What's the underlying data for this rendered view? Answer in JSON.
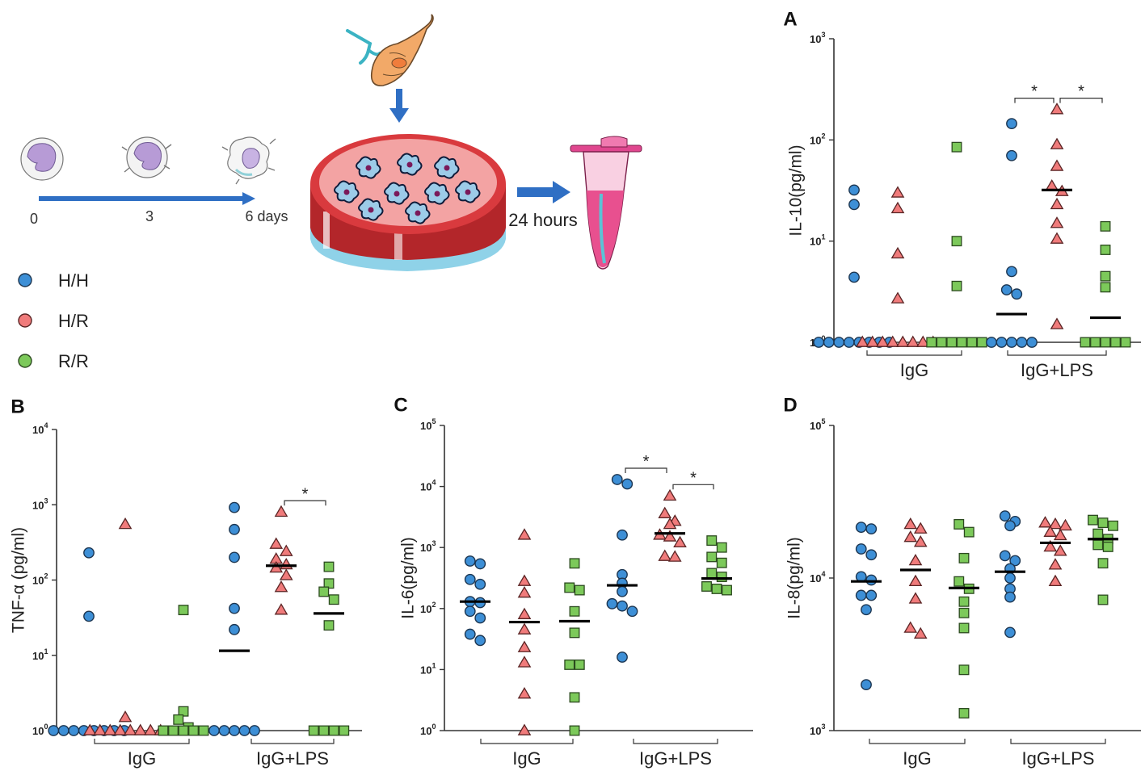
{
  "colors": {
    "hh": "#3d8fd6",
    "hr": "#f07b7b",
    "rr": "#7cc95a",
    "arrow": "#2f6fc4"
  },
  "schematic": {
    "timeline_labels": [
      "0",
      "3",
      "6 days"
    ],
    "incubation_label": "24 hours",
    "icons": [
      "monocyte-icon",
      "dendritic-cell-icon",
      "parasite-icon",
      "culture-dish-icon",
      "tube-icon"
    ]
  },
  "legend": [
    {
      "key": "hh",
      "label": "H/H"
    },
    {
      "key": "hr",
      "label": "H/R"
    },
    {
      "key": "rr",
      "label": "R/R"
    }
  ],
  "chart_data": [
    {
      "id": "A",
      "panel_label": "A",
      "type": "scatter",
      "scale": "log",
      "ylabel": "IL-10(pg/ml)",
      "ylim": [
        1,
        1000
      ],
      "ticks": [
        {
          "base": "10",
          "exp": "0"
        },
        {
          "base": "10",
          "exp": "1"
        },
        {
          "base": "10",
          "exp": "2"
        },
        {
          "base": "10",
          "exp": "3"
        }
      ],
      "groups": [
        {
          "label": "IgG"
        },
        {
          "label": "IgG+LPS"
        }
      ],
      "series": [
        {
          "name": "H/H",
          "group": 0,
          "values": [
            1,
            1,
            1,
            1,
            1,
            1,
            1,
            1,
            4.4,
            23,
            32
          ],
          "median": 1
        },
        {
          "name": "H/R",
          "group": 0,
          "values": [
            1,
            1,
            1,
            1,
            1,
            1,
            1,
            1,
            2.7,
            7.5,
            21,
            30
          ],
          "median": 1
        },
        {
          "name": "R/R",
          "group": 0,
          "values": [
            1,
            1,
            1,
            1,
            1,
            1,
            3.6,
            10,
            85
          ],
          "median": 1
        },
        {
          "name": "H/H",
          "group": 1,
          "values": [
            1,
            1,
            1,
            1,
            1,
            3,
            3.3,
            5,
            70,
            145
          ],
          "median": 1.9
        },
        {
          "name": "H/R",
          "group": 1,
          "values": [
            1.5,
            10.5,
            15,
            23,
            31,
            35,
            55,
            90,
            200
          ],
          "median": 32
        },
        {
          "name": "R/R",
          "group": 1,
          "values": [
            1,
            1,
            1,
            1,
            1,
            3.5,
            4.5,
            8.2,
            14
          ],
          "median": 1.75
        }
      ],
      "significance": [
        {
          "from": 3,
          "to": 4,
          "label": "*"
        },
        {
          "from": 4,
          "to": 5,
          "label": "*"
        }
      ]
    },
    {
      "id": "B",
      "panel_label": "B",
      "type": "scatter",
      "scale": "log",
      "ylabel": "TNF-α (pg/ml)",
      "ylim": [
        1,
        10000
      ],
      "ticks": [
        {
          "base": "10",
          "exp": "0"
        },
        {
          "base": "10",
          "exp": "1"
        },
        {
          "base": "10",
          "exp": "2"
        },
        {
          "base": "10",
          "exp": "3"
        },
        {
          "base": "10",
          "exp": "4"
        }
      ],
      "groups": [
        {
          "label": "IgG"
        },
        {
          "label": "IgG+LPS"
        }
      ],
      "series": [
        {
          "name": "H/H",
          "group": 0,
          "values": [
            1,
            1,
            1,
            1,
            1,
            1,
            1,
            1,
            33,
            230
          ],
          "median": 1
        },
        {
          "name": "H/R",
          "group": 0,
          "values": [
            1,
            1,
            1,
            1,
            1,
            1,
            1,
            1,
            1.5,
            550
          ],
          "median": 1
        },
        {
          "name": "R/R",
          "group": 0,
          "values": [
            1,
            1,
            1,
            1,
            1,
            1.1,
            1.4,
            1.8,
            40
          ],
          "median": 1
        },
        {
          "name": "H/H",
          "group": 1,
          "values": [
            1,
            1,
            1,
            1,
            1,
            22,
            42,
            200,
            470,
            920
          ],
          "median": 11.5
        },
        {
          "name": "H/R",
          "group": 1,
          "values": [
            40,
            80,
            115,
            145,
            160,
            190,
            240,
            300,
            800
          ],
          "median": 155
        },
        {
          "name": "R/R",
          "group": 1,
          "values": [
            1,
            1,
            1,
            1,
            25,
            55,
            70,
            90,
            150
          ],
          "median": 36
        }
      ],
      "significance": [
        {
          "from": 4,
          "to": 5,
          "label": "*"
        }
      ]
    },
    {
      "id": "C",
      "panel_label": "C",
      "type": "scatter",
      "scale": "log",
      "ylabel": "IL-6(pg/ml)",
      "ylim": [
        1,
        100000
      ],
      "ticks": [
        {
          "base": "10",
          "exp": "0"
        },
        {
          "base": "10",
          "exp": "1"
        },
        {
          "base": "10",
          "exp": "2"
        },
        {
          "base": "10",
          "exp": "3"
        },
        {
          "base": "10",
          "exp": "4"
        },
        {
          "base": "10",
          "exp": "5"
        }
      ],
      "groups": [
        {
          "label": "IgG"
        },
        {
          "label": "IgG+LPS"
        }
      ],
      "series": [
        {
          "name": "H/H",
          "group": 0,
          "values": [
            30,
            38,
            70,
            90,
            125,
            130,
            250,
            300,
            540,
            600
          ],
          "median": 130
        },
        {
          "name": "H/R",
          "group": 0,
          "values": [
            1,
            4,
            13,
            23,
            45,
            80,
            180,
            280,
            1600
          ],
          "median": 60
        },
        {
          "name": "R/R",
          "group": 0,
          "values": [
            1,
            3.5,
            12,
            12,
            40,
            90,
            200,
            220,
            550
          ],
          "median": 62
        },
        {
          "name": "H/H",
          "group": 1,
          "values": [
            16,
            90,
            110,
            120,
            190,
            260,
            360,
            1600,
            11000,
            13000
          ],
          "median": 240
        },
        {
          "name": "H/R",
          "group": 1,
          "values": [
            700,
            720,
            1200,
            1500,
            1600,
            2400,
            2700,
            3600,
            7000
          ],
          "median": 1700
        },
        {
          "name": "R/R",
          "group": 1,
          "values": [
            200,
            210,
            230,
            330,
            380,
            560,
            700,
            1000,
            1300
          ],
          "median": 310
        }
      ],
      "significance": [
        {
          "from": 3,
          "to": 4,
          "label": "*"
        },
        {
          "from": 4,
          "to": 5,
          "label": "*"
        }
      ]
    },
    {
      "id": "D",
      "panel_label": "D",
      "type": "scatter",
      "scale": "log",
      "ylabel": "IL-8(pg/ml)",
      "ylim": [
        1000,
        100000
      ],
      "ticks": [
        {
          "base": "10",
          "exp": "3"
        },
        {
          "base": "10",
          "exp": "4"
        },
        {
          "base": "10",
          "exp": "5"
        }
      ],
      "groups": [
        {
          "label": "IgG"
        },
        {
          "label": "IgG+LPS"
        }
      ],
      "series": [
        {
          "name": "H/H",
          "group": 0,
          "values": [
            2000,
            6200,
            7700,
            7700,
            9700,
            10200,
            14200,
            15500,
            21000,
            21500
          ],
          "median": 9500
        },
        {
          "name": "H/R",
          "group": 0,
          "values": [
            4300,
            4700,
            7300,
            9500,
            13000,
            17200,
            18500,
            21000,
            22500
          ],
          "median": 11300
        },
        {
          "name": "R/R",
          "group": 0,
          "values": [
            1300,
            2500,
            4700,
            5900,
            7000,
            8500,
            9500,
            13500,
            20000,
            22500
          ],
          "median": 8600
        },
        {
          "name": "H/H",
          "group": 1,
          "values": [
            4400,
            7500,
            8500,
            10000,
            11500,
            13000,
            14000,
            22000,
            23500,
            25500
          ],
          "median": 11000
        },
        {
          "name": "H/R",
          "group": 1,
          "values": [
            9500,
            12200,
            15000,
            16000,
            19000,
            20000,
            22000,
            22500,
            23000
          ],
          "median": 17000
        },
        {
          "name": "R/R",
          "group": 1,
          "values": [
            7200,
            12500,
            16000,
            16500,
            18000,
            19500,
            22000,
            23000,
            24000
          ],
          "median": 18000
        }
      ],
      "significance": []
    }
  ]
}
